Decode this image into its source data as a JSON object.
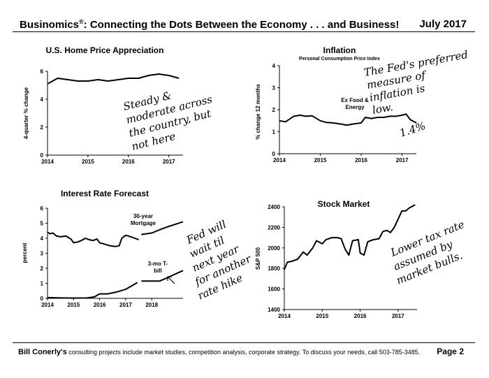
{
  "header": {
    "title": "Businomics",
    "title_mark": "®",
    "title_rest": ": Connecting the Dots Between the Economy . . . and Business!",
    "date": "July 2017"
  },
  "footer": {
    "lead": "Bill Conerly's",
    "text": " consulting projects include market studies, competition analysis, corporate strategy.  To discuss your needs, call 503-785-3485.",
    "page": "Page 2"
  },
  "chart_data": [
    {
      "id": "home",
      "type": "line",
      "title": "U.S. Home Price Appreciation",
      "ylabel": "4-quarter % change",
      "xlim": [
        2014,
        2017.35
      ],
      "ylim": [
        0,
        6
      ],
      "xticks": [
        2014,
        2015,
        2016,
        2017
      ],
      "yticks": [
        0,
        2,
        4,
        6
      ],
      "series": [
        {
          "values": [
            [
              2014.0,
              5.1
            ],
            [
              2014.25,
              5.5
            ],
            [
              2014.5,
              5.4
            ],
            [
              2014.75,
              5.3
            ],
            [
              2015.0,
              5.3
            ],
            [
              2015.25,
              5.4
            ],
            [
              2015.5,
              5.3
            ],
            [
              2015.75,
              5.4
            ],
            [
              2016.0,
              5.5
            ],
            [
              2016.25,
              5.5
            ],
            [
              2016.5,
              5.7
            ],
            [
              2016.75,
              5.8
            ],
            [
              2017.0,
              5.7
            ],
            [
              2017.25,
              5.5
            ]
          ]
        }
      ],
      "annotation": [
        "Steady &",
        "moderate across",
        "the country, but",
        "not here"
      ]
    },
    {
      "id": "inflation",
      "type": "line",
      "title": "Inflation",
      "subtitle": "Personal Consumption Price Index",
      "ylabel": "% change 12 months",
      "xlim": [
        2014,
        2017.35
      ],
      "ylim": [
        0,
        4
      ],
      "xticks": [
        2014,
        2015,
        2016,
        2017
      ],
      "yticks": [
        0,
        1,
        2,
        3,
        4
      ],
      "series": [
        {
          "name": "Ex Food & Energy",
          "values": [
            [
              2014.0,
              1.5
            ],
            [
              2014.15,
              1.45
            ],
            [
              2014.35,
              1.7
            ],
            [
              2014.5,
              1.75
            ],
            [
              2014.65,
              1.7
            ],
            [
              2014.8,
              1.72
            ],
            [
              2015.0,
              1.5
            ],
            [
              2015.15,
              1.42
            ],
            [
              2015.3,
              1.4
            ],
            [
              2015.5,
              1.35
            ],
            [
              2015.65,
              1.3
            ],
            [
              2015.8,
              1.35
            ],
            [
              2016.0,
              1.4
            ],
            [
              2016.1,
              1.65
            ],
            [
              2016.25,
              1.6
            ],
            [
              2016.4,
              1.65
            ],
            [
              2016.55,
              1.65
            ],
            [
              2016.7,
              1.7
            ],
            [
              2016.85,
              1.7
            ],
            [
              2017.0,
              1.75
            ],
            [
              2017.1,
              1.8
            ],
            [
              2017.2,
              1.55
            ],
            [
              2017.35,
              1.4
            ]
          ]
        }
      ],
      "annotation": [
        "The Fed's preferred",
        "measure of",
        "inflation is",
        "low."
      ],
      "annotation2": "1.4%"
    },
    {
      "id": "rates",
      "type": "line",
      "title": "Interest Rate Forecast",
      "ylabel": "percent",
      "xlim": [
        2014,
        2019.2
      ],
      "ylim": [
        0,
        6
      ],
      "xticks": [
        2014,
        2015,
        2016,
        2017,
        2018
      ],
      "yticks": [
        0,
        1,
        2,
        3,
        4,
        5,
        6
      ],
      "series": [
        {
          "name": "30-year Mortgage",
          "values": [
            [
              2014.0,
              4.4
            ],
            [
              2014.1,
              4.3
            ],
            [
              2014.2,
              4.35
            ],
            [
              2014.35,
              4.15
            ],
            [
              2014.5,
              4.1
            ],
            [
              2014.7,
              4.15
            ],
            [
              2014.9,
              3.95
            ],
            [
              2015.0,
              3.7
            ],
            [
              2015.15,
              3.75
            ],
            [
              2015.3,
              3.85
            ],
            [
              2015.45,
              4.0
            ],
            [
              2015.6,
              3.9
            ],
            [
              2015.75,
              3.85
            ],
            [
              2015.9,
              3.95
            ],
            [
              2016.0,
              3.7
            ],
            [
              2016.2,
              3.6
            ],
            [
              2016.4,
              3.5
            ],
            [
              2016.6,
              3.45
            ],
            [
              2016.75,
              3.5
            ],
            [
              2016.85,
              4.0
            ],
            [
              2017.0,
              4.2
            ],
            [
              2017.2,
              4.1
            ],
            [
              2017.35,
              4.0
            ],
            [
              2017.5,
              3.9
            ]
          ]
        },
        {
          "name": "30-year Mortgage forecast",
          "values": [
            [
              2017.6,
              4.25
            ],
            [
              2018.0,
              4.35
            ],
            [
              2018.5,
              4.7
            ],
            [
              2019.2,
              5.1
            ]
          ]
        },
        {
          "name": "3-mo T-bill",
          "values": [
            [
              2014.0,
              0.05
            ],
            [
              2014.5,
              0.03
            ],
            [
              2015.0,
              0.02
            ],
            [
              2015.5,
              0.03
            ],
            [
              2015.8,
              0.1
            ],
            [
              2016.0,
              0.3
            ],
            [
              2016.3,
              0.3
            ],
            [
              2016.6,
              0.4
            ],
            [
              2016.9,
              0.55
            ],
            [
              2017.0,
              0.6
            ],
            [
              2017.2,
              0.8
            ],
            [
              2017.45,
              1.05
            ]
          ]
        },
        {
          "name": "3-mo T-bill forecast",
          "values": [
            [
              2017.6,
              1.15
            ],
            [
              2018.0,
              1.15
            ],
            [
              2018.3,
              1.15
            ],
            [
              2018.5,
              1.3
            ],
            [
              2019.2,
              1.85
            ]
          ]
        }
      ],
      "labels": {
        "mortgage": [
          "30-year",
          "Mortgage"
        ],
        "tbill": [
          "3-mo T-",
          "bill"
        ]
      },
      "annotation": [
        "Fed will",
        "wait til",
        "next year",
        "for another",
        "rate hike"
      ]
    },
    {
      "id": "stocks",
      "type": "line",
      "title": "Stock Market",
      "ylabel": "S&P 500",
      "xlim": [
        2014,
        2017.5
      ],
      "ylim": [
        1400,
        2400
      ],
      "xticks": [
        2014,
        2015,
        2016,
        2017
      ],
      "yticks": [
        1400,
        1600,
        1800,
        2000,
        2200,
        2400
      ],
      "series": [
        {
          "values": [
            [
              2014.0,
              1790
            ],
            [
              2014.08,
              1860
            ],
            [
              2014.2,
              1870
            ],
            [
              2014.35,
              1890
            ],
            [
              2014.5,
              1960
            ],
            [
              2014.6,
              1930
            ],
            [
              2014.75,
              2000
            ],
            [
              2014.85,
              2070
            ],
            [
              2015.0,
              2040
            ],
            [
              2015.1,
              2080
            ],
            [
              2015.25,
              2100
            ],
            [
              2015.4,
              2100
            ],
            [
              2015.5,
              2090
            ],
            [
              2015.6,
              1990
            ],
            [
              2015.7,
              1930
            ],
            [
              2015.8,
              2070
            ],
            [
              2015.95,
              2080
            ],
            [
              2016.0,
              1950
            ],
            [
              2016.1,
              1930
            ],
            [
              2016.2,
              2060
            ],
            [
              2016.35,
              2080
            ],
            [
              2016.5,
              2090
            ],
            [
              2016.6,
              2160
            ],
            [
              2016.7,
              2170
            ],
            [
              2016.8,
              2150
            ],
            [
              2016.9,
              2200
            ],
            [
              2017.0,
              2280
            ],
            [
              2017.1,
              2360
            ],
            [
              2017.2,
              2360
            ],
            [
              2017.3,
              2390
            ],
            [
              2017.45,
              2420
            ]
          ]
        }
      ],
      "annotation": [
        "Lower tax rate",
        "assumed by",
        "market bulls."
      ]
    }
  ]
}
